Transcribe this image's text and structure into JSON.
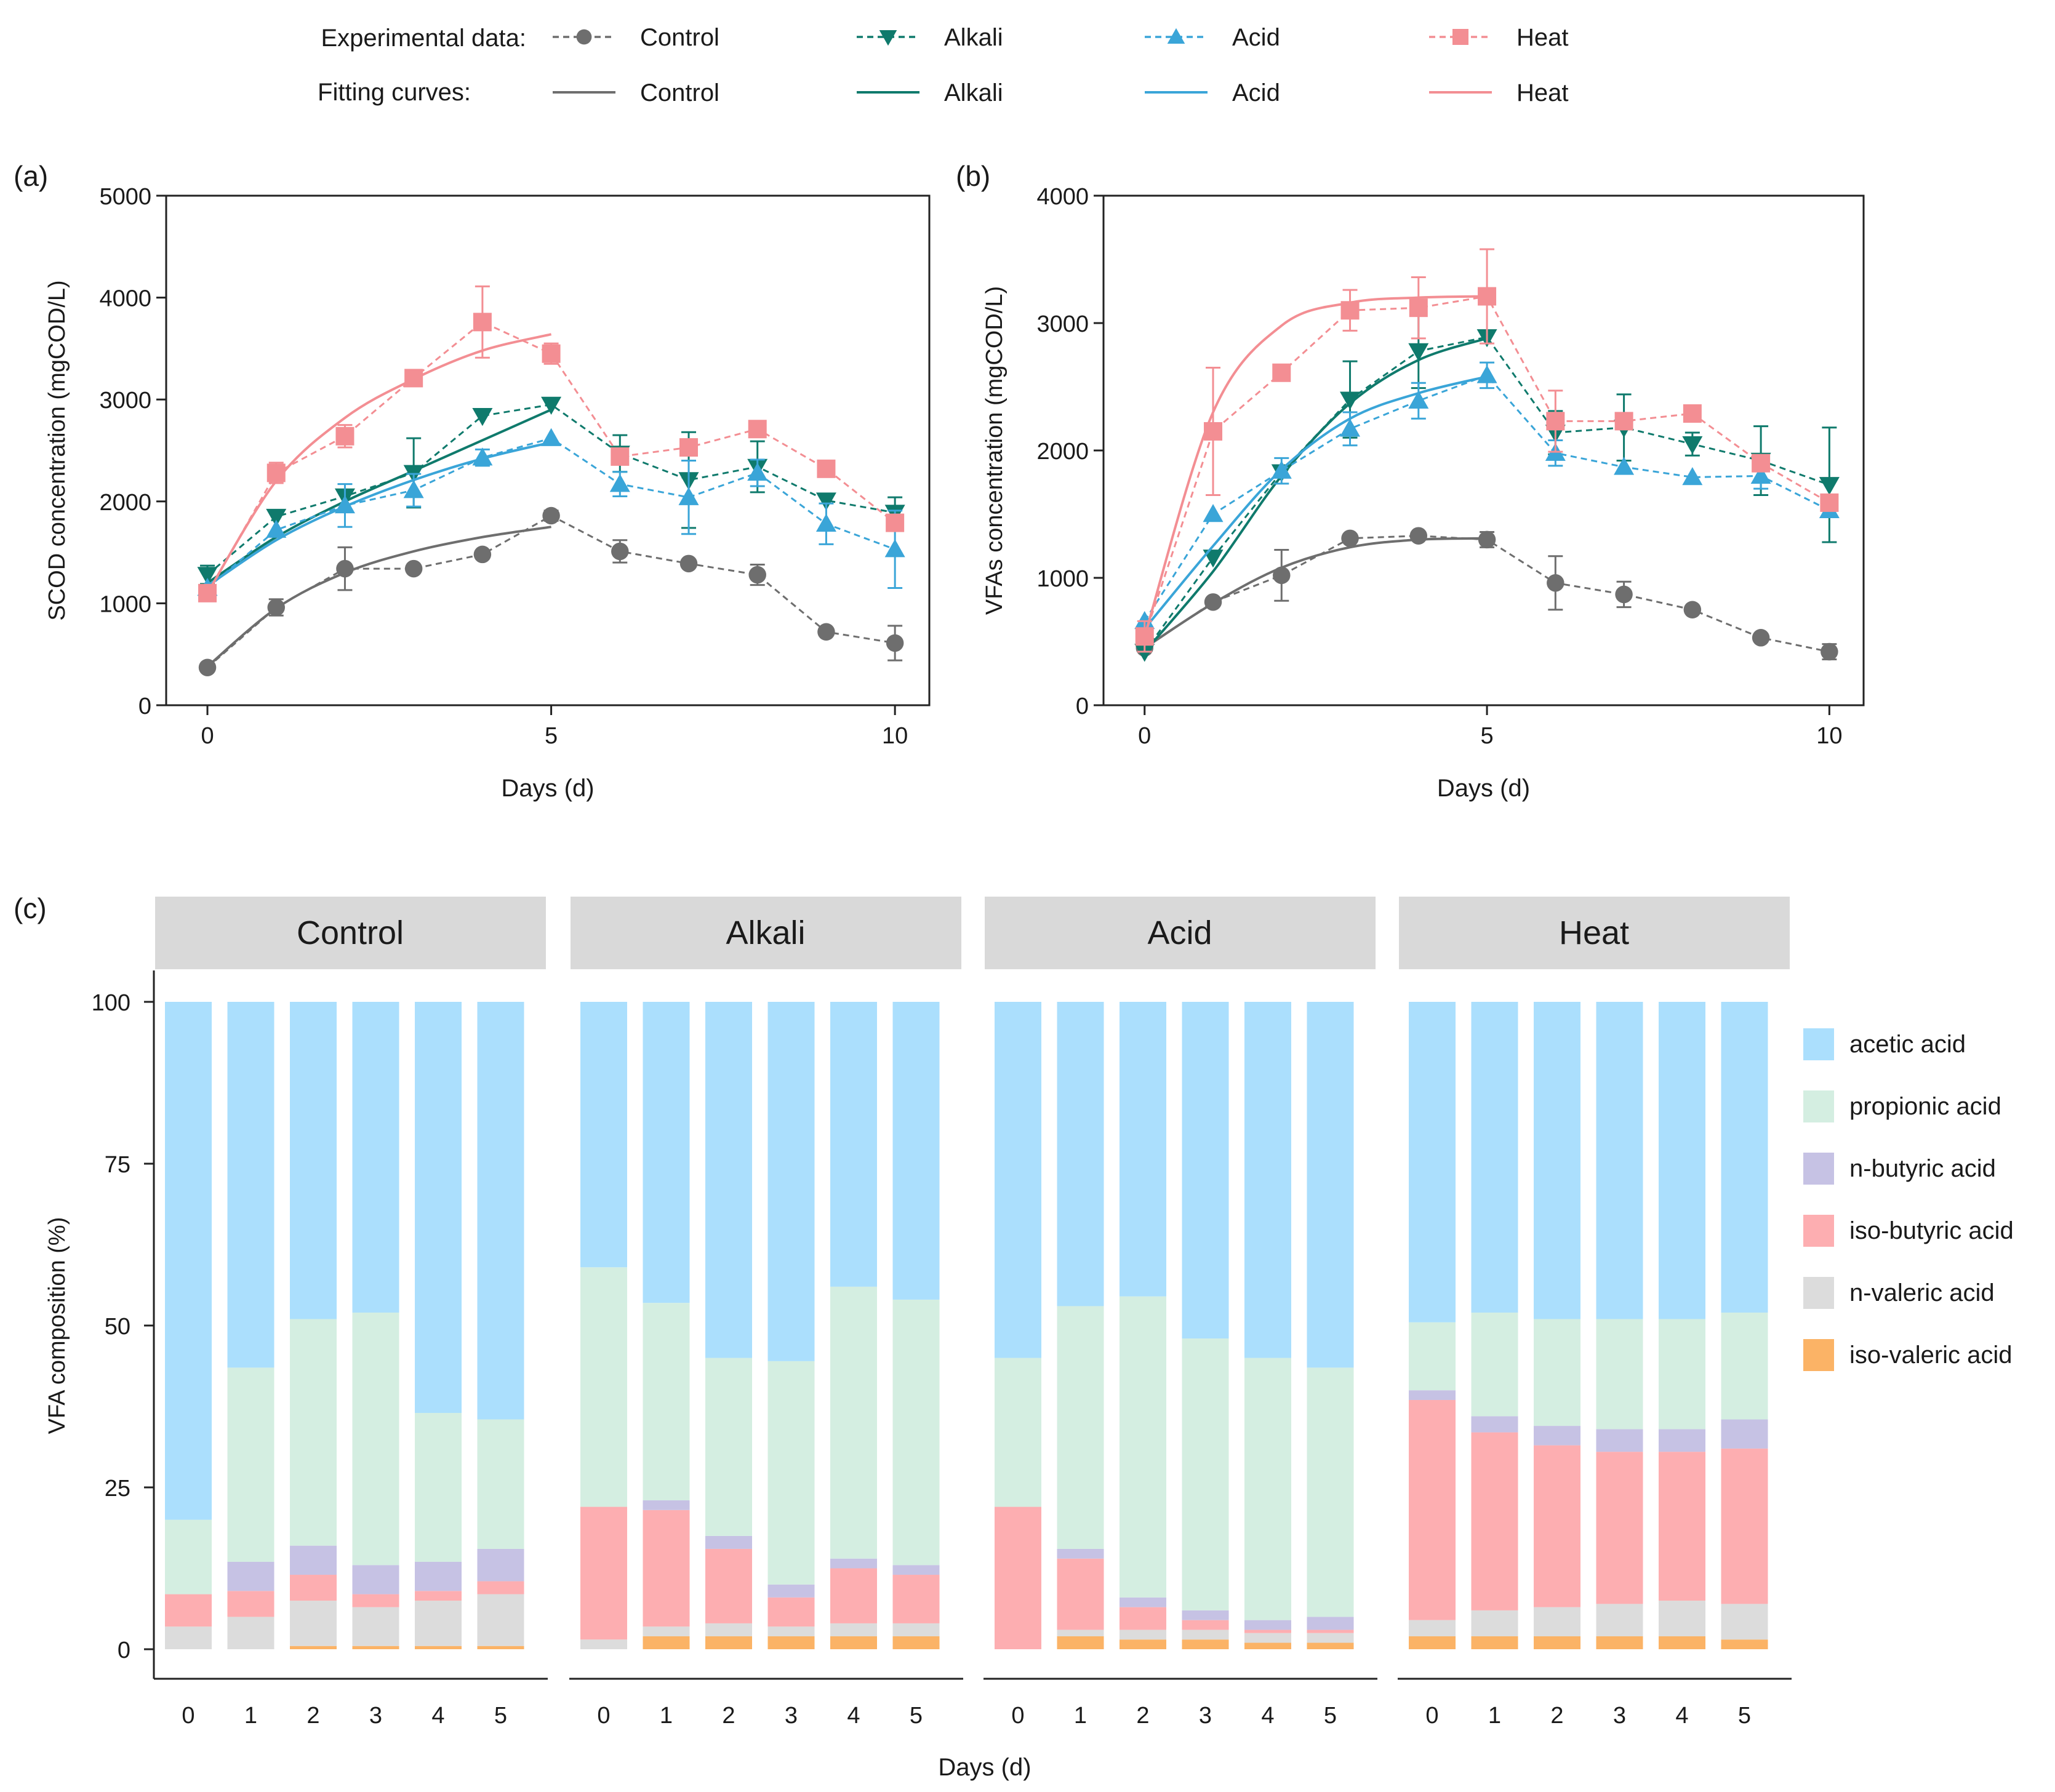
{
  "legend": {
    "experimental_label": "Experimental data:",
    "fitting_label": "Fitting curves:",
    "groups": [
      {
        "name": "Control",
        "color": "#6e6e6e",
        "marker": "circle"
      },
      {
        "name": "Alkali",
        "color": "#0f7a6c",
        "marker": "triangle-down"
      },
      {
        "name": "Acid",
        "color": "#3aa5d8",
        "marker": "triangle-up"
      },
      {
        "name": "Heat",
        "color": "#f38e93",
        "marker": "square"
      }
    ]
  },
  "chart_data": [
    {
      "id": "a",
      "panel_label": "(a)",
      "type": "line",
      "xlabel": "Days (d)",
      "ylabel": "SCOD concentration (mgCOD/L)",
      "xlim": [
        -0.6,
        10.5
      ],
      "ylim": [
        0,
        5000
      ],
      "xticks": [
        0,
        5,
        10
      ],
      "yticks": [
        0,
        1000,
        2000,
        3000,
        4000,
        5000
      ],
      "x": [
        0,
        1,
        2,
        3,
        4,
        5,
        6,
        7,
        8,
        9,
        10
      ],
      "series": [
        {
          "name": "Control",
          "values": [
            370,
            960,
            1340,
            1340,
            1480,
            1860,
            1510,
            1390,
            1280,
            720,
            610
          ],
          "errors": [
            0,
            80,
            210,
            0,
            0,
            50,
            110,
            0,
            100,
            0,
            170
          ],
          "fit": [
            380,
            950,
            1300,
            1510,
            1650,
            1750
          ]
        },
        {
          "name": "Alkali",
          "values": [
            1280,
            1850,
            2050,
            2280,
            2840,
            2950,
            2470,
            2210,
            2340,
            2010,
            1890
          ],
          "errors": [
            90,
            0,
            0,
            340,
            0,
            0,
            180,
            470,
            250,
            0,
            150
          ],
          "fit": [
            1200,
            1650,
            2000,
            2300,
            2600,
            2900
          ]
        },
        {
          "name": "Acid",
          "values": [
            1150,
            1720,
            1960,
            2110,
            2430,
            2620,
            2170,
            2040,
            2280,
            1780,
            1530
          ],
          "errors": [
            0,
            0,
            210,
            160,
            80,
            0,
            120,
            360,
            130,
            200,
            380
          ],
          "fit": [
            1170,
            1620,
            1950,
            2210,
            2420,
            2580
          ]
        },
        {
          "name": "Heat",
          "values": [
            1100,
            2280,
            2640,
            3210,
            3760,
            3450,
            2440,
            2530,
            2710,
            2320,
            1790
          ],
          "errors": [
            0,
            100,
            110,
            0,
            350,
            100,
            0,
            0,
            0,
            0,
            0
          ],
          "fit": [
            1100,
            2200,
            2820,
            3200,
            3480,
            3640
          ]
        }
      ]
    },
    {
      "id": "b",
      "panel_label": "(b)",
      "type": "line",
      "xlabel": "Days (d)",
      "ylabel": "VFAs concentration (mgCOD/L)",
      "xlim": [
        -0.6,
        10.5
      ],
      "ylim": [
        0,
        4000
      ],
      "xticks": [
        0,
        5,
        10
      ],
      "yticks": [
        0,
        1000,
        2000,
        3000,
        4000
      ],
      "x": [
        0,
        1,
        2,
        3,
        4,
        5,
        6,
        7,
        8,
        9,
        10
      ],
      "series": [
        {
          "name": "Control",
          "values": [
            450,
            810,
            1020,
            1310,
            1330,
            1300,
            960,
            870,
            750,
            530,
            420
          ],
          "errors": [
            0,
            0,
            200,
            0,
            0,
            60,
            210,
            100,
            0,
            0,
            60
          ],
          "fit": [
            450,
            800,
            1080,
            1240,
            1300,
            1310
          ]
        },
        {
          "name": "Alkali",
          "values": [
            420,
            1160,
            1830,
            2400,
            2780,
            2890,
            2140,
            2180,
            2050,
            1920,
            1730
          ],
          "errors": [
            0,
            0,
            0,
            300,
            290,
            0,
            170,
            260,
            90,
            270,
            450
          ],
          "fit": [
            420,
            1050,
            1800,
            2370,
            2710,
            2880
          ]
        },
        {
          "name": "Acid",
          "values": [
            660,
            1500,
            1840,
            2170,
            2390,
            2590,
            1980,
            1870,
            1790,
            1800,
            1530
          ],
          "errors": [
            0,
            0,
            100,
            130,
            140,
            100,
            100,
            0,
            0,
            100,
            0
          ],
          "fit": [
            600,
            1250,
            1850,
            2250,
            2450,
            2580
          ]
        },
        {
          "name": "Heat",
          "values": [
            540,
            2150,
            2610,
            3100,
            3120,
            3210,
            2230,
            2230,
            2290,
            1900,
            1590
          ],
          "errors": [
            120,
            500,
            0,
            160,
            240,
            370,
            240,
            0,
            0,
            0,
            0
          ],
          "fit": [
            540,
            2300,
            2980,
            3160,
            3200,
            3210
          ]
        }
      ]
    },
    {
      "id": "c",
      "panel_label": "(c)",
      "type": "bar",
      "stacked": true,
      "xlabel": "Days (d)",
      "ylabel": "VFA composition (%)",
      "ylim": [
        0,
        100
      ],
      "yticks": [
        0,
        25,
        50,
        75,
        100
      ],
      "categories": [
        "0",
        "1",
        "2",
        "3",
        "4",
        "5"
      ],
      "components": [
        {
          "name": "iso-valeric acid",
          "color": "#fbb366"
        },
        {
          "name": "n-valeric acid",
          "color": "#dcdcdc"
        },
        {
          "name": "iso-butyric acid",
          "color": "#fdaeb1"
        },
        {
          "name": "n-butyric acid",
          "color": "#c6c2e4"
        },
        {
          "name": "propionic acid",
          "color": "#d4eee1"
        },
        {
          "name": "acetic acid",
          "color": "#abdffd"
        }
      ],
      "legend_order": [
        "acetic acid",
        "propionic acid",
        "n-butyric acid",
        "iso-butyric acid",
        "n-valeric acid",
        "iso-valeric acid"
      ],
      "groups": [
        {
          "name": "Control",
          "data": [
            [
              0,
              3.5,
              5,
              0,
              11.5,
              80
            ],
            [
              0,
              5,
              4,
              4.5,
              30,
              56.5
            ],
            [
              0.5,
              7,
              4,
              4.5,
              35,
              49
            ],
            [
              0.5,
              6,
              2,
              4.5,
              39,
              48
            ],
            [
              0.5,
              7,
              1.5,
              4.5,
              23,
              63.5
            ],
            [
              0.5,
              8,
              2,
              5,
              20,
              64.5
            ]
          ]
        },
        {
          "name": "Alkali",
          "data": [
            [
              0,
              1.5,
              20.5,
              0,
              37,
              41
            ],
            [
              2,
              1.5,
              18,
              1.5,
              30.5,
              46.5
            ],
            [
              2,
              2,
              11.5,
              2,
              27.5,
              55
            ],
            [
              2,
              1.5,
              4.5,
              2,
              34.5,
              55.5
            ],
            [
              2,
              2,
              8.5,
              1.5,
              42,
              44
            ],
            [
              2,
              2,
              7.5,
              1.5,
              41,
              46
            ]
          ]
        },
        {
          "name": "Acid",
          "data": [
            [
              0,
              0,
              22,
              0,
              23,
              55
            ],
            [
              2,
              1,
              11,
              1.5,
              37.5,
              47
            ],
            [
              1.5,
              1.5,
              3.5,
              1.5,
              46.5,
              45.5
            ],
            [
              1.5,
              1.5,
              1.5,
              1.5,
              42,
              52
            ],
            [
              1,
              1.5,
              0.5,
              1.5,
              40.5,
              55
            ],
            [
              1,
              1.5,
              0.5,
              2,
              38.5,
              56.5
            ]
          ]
        },
        {
          "name": "Heat",
          "data": [
            [
              2,
              2.5,
              34,
              1.5,
              10.5,
              49.5
            ],
            [
              2,
              4,
              27.5,
              2.5,
              16,
              48
            ],
            [
              2,
              4.5,
              25,
              3,
              16.5,
              49
            ],
            [
              2,
              5,
              23.5,
              3.5,
              17,
              49
            ],
            [
              2,
              5.5,
              23,
              3.5,
              17,
              49
            ],
            [
              1.5,
              5.5,
              24,
              4.5,
              16.5,
              48
            ]
          ]
        }
      ]
    }
  ]
}
